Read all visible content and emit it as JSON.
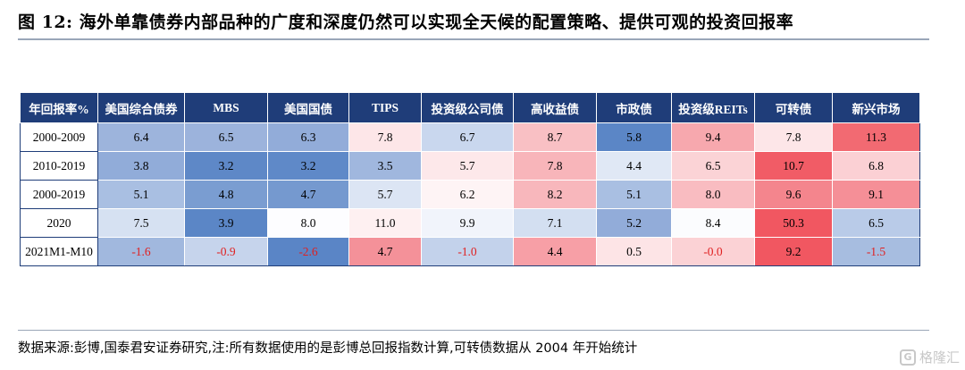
{
  "title": "图 12:  海外单靠债券内部品种的广度和深度仍然可以实现全天候的配置策略、提供可观的投资回报率",
  "table": {
    "headers": [
      "年回报率%",
      "美国综合债券",
      "MBS",
      "美国国债",
      "TIPS",
      "投资级公司债",
      "高收益债",
      "市政债",
      "投资级REITs",
      "可转债",
      "新兴市场"
    ],
    "rows": [
      {
        "label": "2000-2009",
        "cells": [
          {
            "v": "6.4",
            "bg": "#9db4dc"
          },
          {
            "v": "6.5",
            "bg": "#9cb3dc"
          },
          {
            "v": "6.3",
            "bg": "#92acd9"
          },
          {
            "v": "7.8",
            "bg": "#fde6e8"
          },
          {
            "v": "6.7",
            "bg": "#c9d7ee"
          },
          {
            "v": "8.7",
            "bg": "#f9c0c4"
          },
          {
            "v": "5.8",
            "bg": "#5b86c6"
          },
          {
            "v": "9.4",
            "bg": "#f7a8ae"
          },
          {
            "v": "7.8",
            "bg": "#fde6e8"
          },
          {
            "v": "11.3",
            "bg": "#f26a72"
          }
        ]
      },
      {
        "label": "2010-2019",
        "cells": [
          {
            "v": "3.8",
            "bg": "#91acd9"
          },
          {
            "v": "3.2",
            "bg": "#5e88c7"
          },
          {
            "v": "3.2",
            "bg": "#5f89c8"
          },
          {
            "v": "3.5",
            "bg": "#a0b7de"
          },
          {
            "v": "5.7",
            "bg": "#fde8ea"
          },
          {
            "v": "7.8",
            "bg": "#f8b5ba"
          },
          {
            "v": "4.4",
            "bg": "#e0e8f5"
          },
          {
            "v": "6.5",
            "bg": "#fbd3d6"
          },
          {
            "v": "10.7",
            "bg": "#f15c66"
          },
          {
            "v": "6.8",
            "bg": "#fbd0d4"
          }
        ]
      },
      {
        "label": "2000-2019",
        "cells": [
          {
            "v": "5.1",
            "bg": "#a9bfe2"
          },
          {
            "v": "4.8",
            "bg": "#7a9dd1"
          },
          {
            "v": "4.7",
            "bg": "#7599cf"
          },
          {
            "v": "5.7",
            "bg": "#dce5f4"
          },
          {
            "v": "6.2",
            "bg": "#fef4f5"
          },
          {
            "v": "8.2",
            "bg": "#f8b7bc"
          },
          {
            "v": "5.1",
            "bg": "#a9bfe2"
          },
          {
            "v": "8.0",
            "bg": "#f9bcc1"
          },
          {
            "v": "9.6",
            "bg": "#f4858d"
          },
          {
            "v": "9.1",
            "bg": "#f58f97"
          }
        ]
      },
      {
        "label": "2020",
        "cells": [
          {
            "v": "7.5",
            "bg": "#d6e1f2"
          },
          {
            "v": "3.9",
            "bg": "#5b86c6"
          },
          {
            "v": "8.0",
            "bg": "#fdfdff"
          },
          {
            "v": "11.0",
            "bg": "#fef0f1"
          },
          {
            "v": "9.9",
            "bg": "#f1f4fb"
          },
          {
            "v": "7.1",
            "bg": "#d3dff1"
          },
          {
            "v": "5.2",
            "bg": "#92acd9"
          },
          {
            "v": "8.4",
            "bg": "#fbfcfe"
          },
          {
            "v": "50.3",
            "bg": "#f15761"
          },
          {
            "v": "6.5",
            "bg": "#b9cbe8"
          }
        ]
      },
      {
        "label": "2021M1-M10",
        "cells": [
          {
            "v": "-1.6",
            "bg": "#a1b8de",
            "neg": true
          },
          {
            "v": "-0.9",
            "bg": "#c6d4ec",
            "neg": true
          },
          {
            "v": "-2.6",
            "bg": "#5a85c6",
            "neg": true
          },
          {
            "v": "4.7",
            "bg": "#f49199"
          },
          {
            "v": "-1.0",
            "bg": "#c3d2eb",
            "neg": true
          },
          {
            "v": "4.4",
            "bg": "#f79fa6"
          },
          {
            "v": "0.5",
            "bg": "#fde4e6"
          },
          {
            "v": "-0.0",
            "bg": "#fbd2d5",
            "neg": true
          },
          {
            "v": "9.2",
            "bg": "#f15761"
          },
          {
            "v": "-1.5",
            "bg": "#a7bde0",
            "neg": true
          }
        ]
      }
    ]
  },
  "source": "数据来源:彭博,国泰君安证券研究,注:所有数据使用的是彭博总回报指数计算,可转债数据从 2004 年开始统计",
  "watermark": {
    "logo": "G",
    "text": "格隆汇"
  },
  "colors": {
    "header_bg": "#1f3d79",
    "negative_text": "#e02020"
  }
}
